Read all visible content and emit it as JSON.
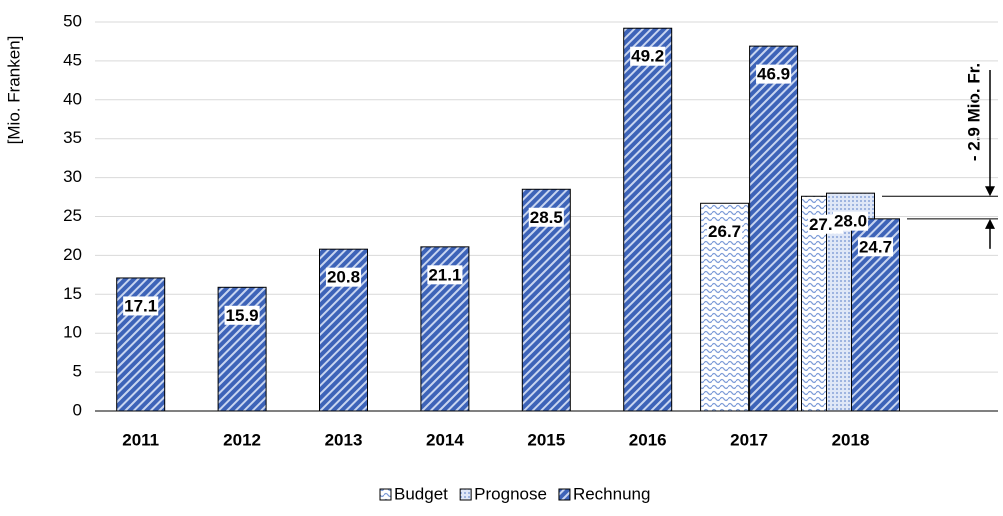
{
  "chart_data": {
    "type": "bar",
    "y_label": "[Mio. Franken]",
    "categories": [
      "2011",
      "2012",
      "2013",
      "2014",
      "2015",
      "2016",
      "2017",
      "2018"
    ],
    "series": [
      {
        "name": "Budget",
        "color": "#9fb6e3",
        "values": [
          null,
          null,
          null,
          null,
          null,
          null,
          26.7,
          27.6
        ],
        "value_labels": [
          null,
          null,
          null,
          null,
          null,
          null,
          "26.7",
          "27.6"
        ]
      },
      {
        "name": "Prognose",
        "color": "#c5d4ef",
        "values": [
          null,
          null,
          null,
          null,
          null,
          null,
          null,
          28.0
        ],
        "value_labels": [
          null,
          null,
          null,
          null,
          null,
          null,
          null,
          "28.0"
        ]
      },
      {
        "name": "Rechnung",
        "color": "#3d63b8",
        "values": [
          17.1,
          15.9,
          20.8,
          21.1,
          28.5,
          49.2,
          46.9,
          24.7
        ],
        "value_labels": [
          "17.1",
          "15.9",
          "20.8",
          "21.1",
          "28.5",
          "49.2",
          "46.9",
          "24.7"
        ]
      }
    ],
    "annotation": "- 2.9 Mio. Fr.",
    "ylim": [
      0,
      50
    ],
    "yticks": [
      0,
      5,
      10,
      15,
      20,
      25,
      30,
      35,
      40,
      45,
      50
    ],
    "grid": true,
    "legend": "bottom"
  }
}
